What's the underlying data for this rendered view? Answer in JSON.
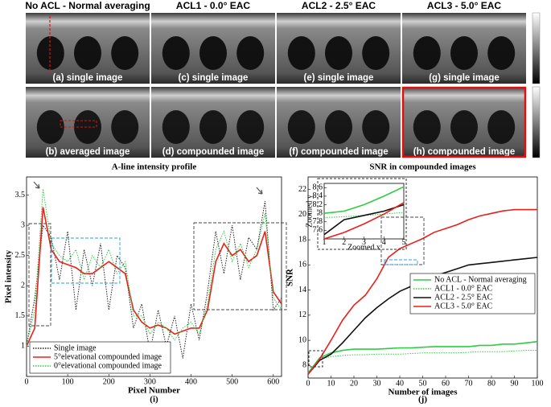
{
  "columns": [
    "No ACL - Normal averaging",
    "ACL1 - 0.0° EAC",
    "ACL2 - 2.5° EAC",
    "ACL3 - 5.0° EAC"
  ],
  "panel_labels": [
    "(a) single image",
    "(c) single image",
    "(e) single image",
    "(g) single image",
    "(b) averaged image",
    "(d) compounded image",
    "(f) compounded image",
    "(h) compounded image"
  ],
  "chart_data": [
    {
      "type": "line",
      "title": "A-line intensity profile",
      "x_label": "Pixel Number",
      "y_label": "Pixel intensity",
      "caption": "(i)",
      "x": [
        0,
        20,
        40,
        60,
        80,
        100,
        120,
        140,
        160,
        180,
        200,
        220,
        240,
        260,
        280,
        300,
        320,
        340,
        360,
        380,
        400,
        420,
        440,
        460,
        480,
        500,
        520,
        540,
        560,
        580,
        600,
        620
      ],
      "series": [
        {
          "name": "Single image",
          "color": "#222222",
          "style": "dotted",
          "values": [
            1.0,
            1.8,
            3.0,
            2.8,
            2.1,
            2.9,
            1.6,
            2.6,
            2.0,
            2.7,
            1.6,
            2.5,
            2.3,
            1.3,
            1.7,
            0.9,
            1.6,
            1.0,
            1.5,
            0.8,
            1.7,
            1.1,
            1.9,
            2.9,
            2.2,
            3.0,
            2.1,
            2.8,
            2.6,
            3.4,
            1.6,
            1.8
          ]
        },
        {
          "name": "5°elevational compounded image",
          "color": "#e8201c",
          "style": "solid",
          "values": [
            1.0,
            1.3,
            3.3,
            2.6,
            2.4,
            2.35,
            2.3,
            2.2,
            2.2,
            2.3,
            2.4,
            2.3,
            2.2,
            1.6,
            1.4,
            1.3,
            1.35,
            1.3,
            1.2,
            1.25,
            1.3,
            1.3,
            1.6,
            2.4,
            2.7,
            2.5,
            2.6,
            2.4,
            2.5,
            2.9,
            1.9,
            1.7
          ]
        },
        {
          "name": "0°elevational compounded image",
          "color": "#2ecc40",
          "style": "dotted",
          "values": [
            1.0,
            1.6,
            3.6,
            2.7,
            2.5,
            2.4,
            2.6,
            2.1,
            2.5,
            2.3,
            2.6,
            2.2,
            2.4,
            1.5,
            1.5,
            1.2,
            1.4,
            1.3,
            1.1,
            1.3,
            1.4,
            1.2,
            1.7,
            2.6,
            2.9,
            2.4,
            2.7,
            2.3,
            2.6,
            3.2,
            1.8,
            1.6
          ]
        }
      ],
      "xlim": [
        0,
        620
      ],
      "xticks": [
        0,
        100,
        200,
        300,
        400,
        500,
        600
      ],
      "ylim": [
        0.5,
        3.8
      ],
      "yticks": [
        1,
        1.5,
        2,
        2.5,
        3,
        3.5
      ],
      "legend": "lower left"
    },
    {
      "type": "line",
      "title": "SNR in compounded images",
      "x_label": "Number of images",
      "y_label": "SNR",
      "caption": "(j)",
      "x": [
        0,
        5,
        10,
        15,
        20,
        25,
        30,
        35,
        40,
        45,
        50,
        55,
        60,
        65,
        70,
        75,
        80,
        85,
        90,
        95,
        100
      ],
      "series": [
        {
          "name": "No ACL - Normal averaging",
          "color": "#2ecc40",
          "style": "solid",
          "values": [
            7.4,
            8.6,
            9.0,
            9.2,
            9.3,
            9.3,
            9.3,
            9.35,
            9.4,
            9.4,
            9.45,
            9.5,
            9.5,
            9.5,
            9.5,
            9.6,
            9.6,
            9.7,
            9.7,
            9.8,
            9.9
          ]
        },
        {
          "name": "ACL1 - 0.0° EAC",
          "color": "#2ecc40",
          "style": "dotted",
          "values": [
            7.4,
            8.5,
            8.7,
            8.8,
            8.85,
            8.85,
            8.9,
            8.9,
            8.9,
            8.95,
            9.0,
            9.0,
            9.0,
            9.0,
            9.05,
            9.1,
            9.1,
            9.1,
            9.15,
            9.2,
            9.2
          ]
        },
        {
          "name": "ACL2 - 2.5° EAC",
          "color": "#111111",
          "style": "solid",
          "values": [
            7.3,
            8.4,
            8.9,
            9.8,
            10.8,
            11.8,
            12.6,
            13.3,
            13.9,
            14.3,
            14.7,
            15.1,
            15.4,
            15.7,
            16.0,
            16.1,
            16.2,
            16.3,
            16.4,
            16.5,
            16.6
          ]
        },
        {
          "name": "ACL3 - 5.0° EAC",
          "color": "#e8201c",
          "style": "solid",
          "values": [
            7.3,
            8.5,
            10.0,
            11.6,
            12.8,
            13.6,
            14.9,
            16.6,
            17.3,
            17.7,
            18.1,
            18.6,
            18.9,
            19.2,
            19.6,
            19.9,
            20.1,
            20.3,
            20.4,
            20.4,
            20.4
          ]
        }
      ],
      "xlim": [
        0,
        100
      ],
      "xticks": [
        0,
        10,
        20,
        30,
        40,
        50,
        60,
        70,
        80,
        90,
        100
      ],
      "ylim": [
        7,
        23
      ],
      "yticks": [
        8,
        10,
        12,
        14,
        16,
        18,
        20,
        22
      ],
      "legend": "center right",
      "inset": {
        "x_label": "Zoomed x",
        "y_label": "Zoomed y",
        "x": [
          1,
          2,
          3,
          4,
          5
        ],
        "series": [
          {
            "color": "#2ecc40",
            "style": "solid",
            "values": [
              8.0,
              8.05,
              8.2,
              8.4,
              8.62
            ]
          },
          {
            "color": "#2ecc40",
            "style": "dotted",
            "values": [
              7.9,
              7.92,
              7.95,
              7.98,
              8.02
            ]
          },
          {
            "color": "#111111",
            "style": "solid",
            "values": [
              7.5,
              7.85,
              7.95,
              8.05,
              8.2
            ]
          },
          {
            "color": "#e8201c",
            "style": "solid",
            "values": [
              7.4,
              7.55,
              7.75,
              7.98,
              8.25
            ]
          }
        ],
        "xlim": [
          1,
          5
        ],
        "xticks": [
          1,
          2,
          3,
          4,
          5
        ],
        "ylim": [
          7.4,
          8.7
        ],
        "yticks": [
          7.6,
          7.8,
          8,
          8.2,
          8.4,
          8.6
        ]
      }
    }
  ]
}
